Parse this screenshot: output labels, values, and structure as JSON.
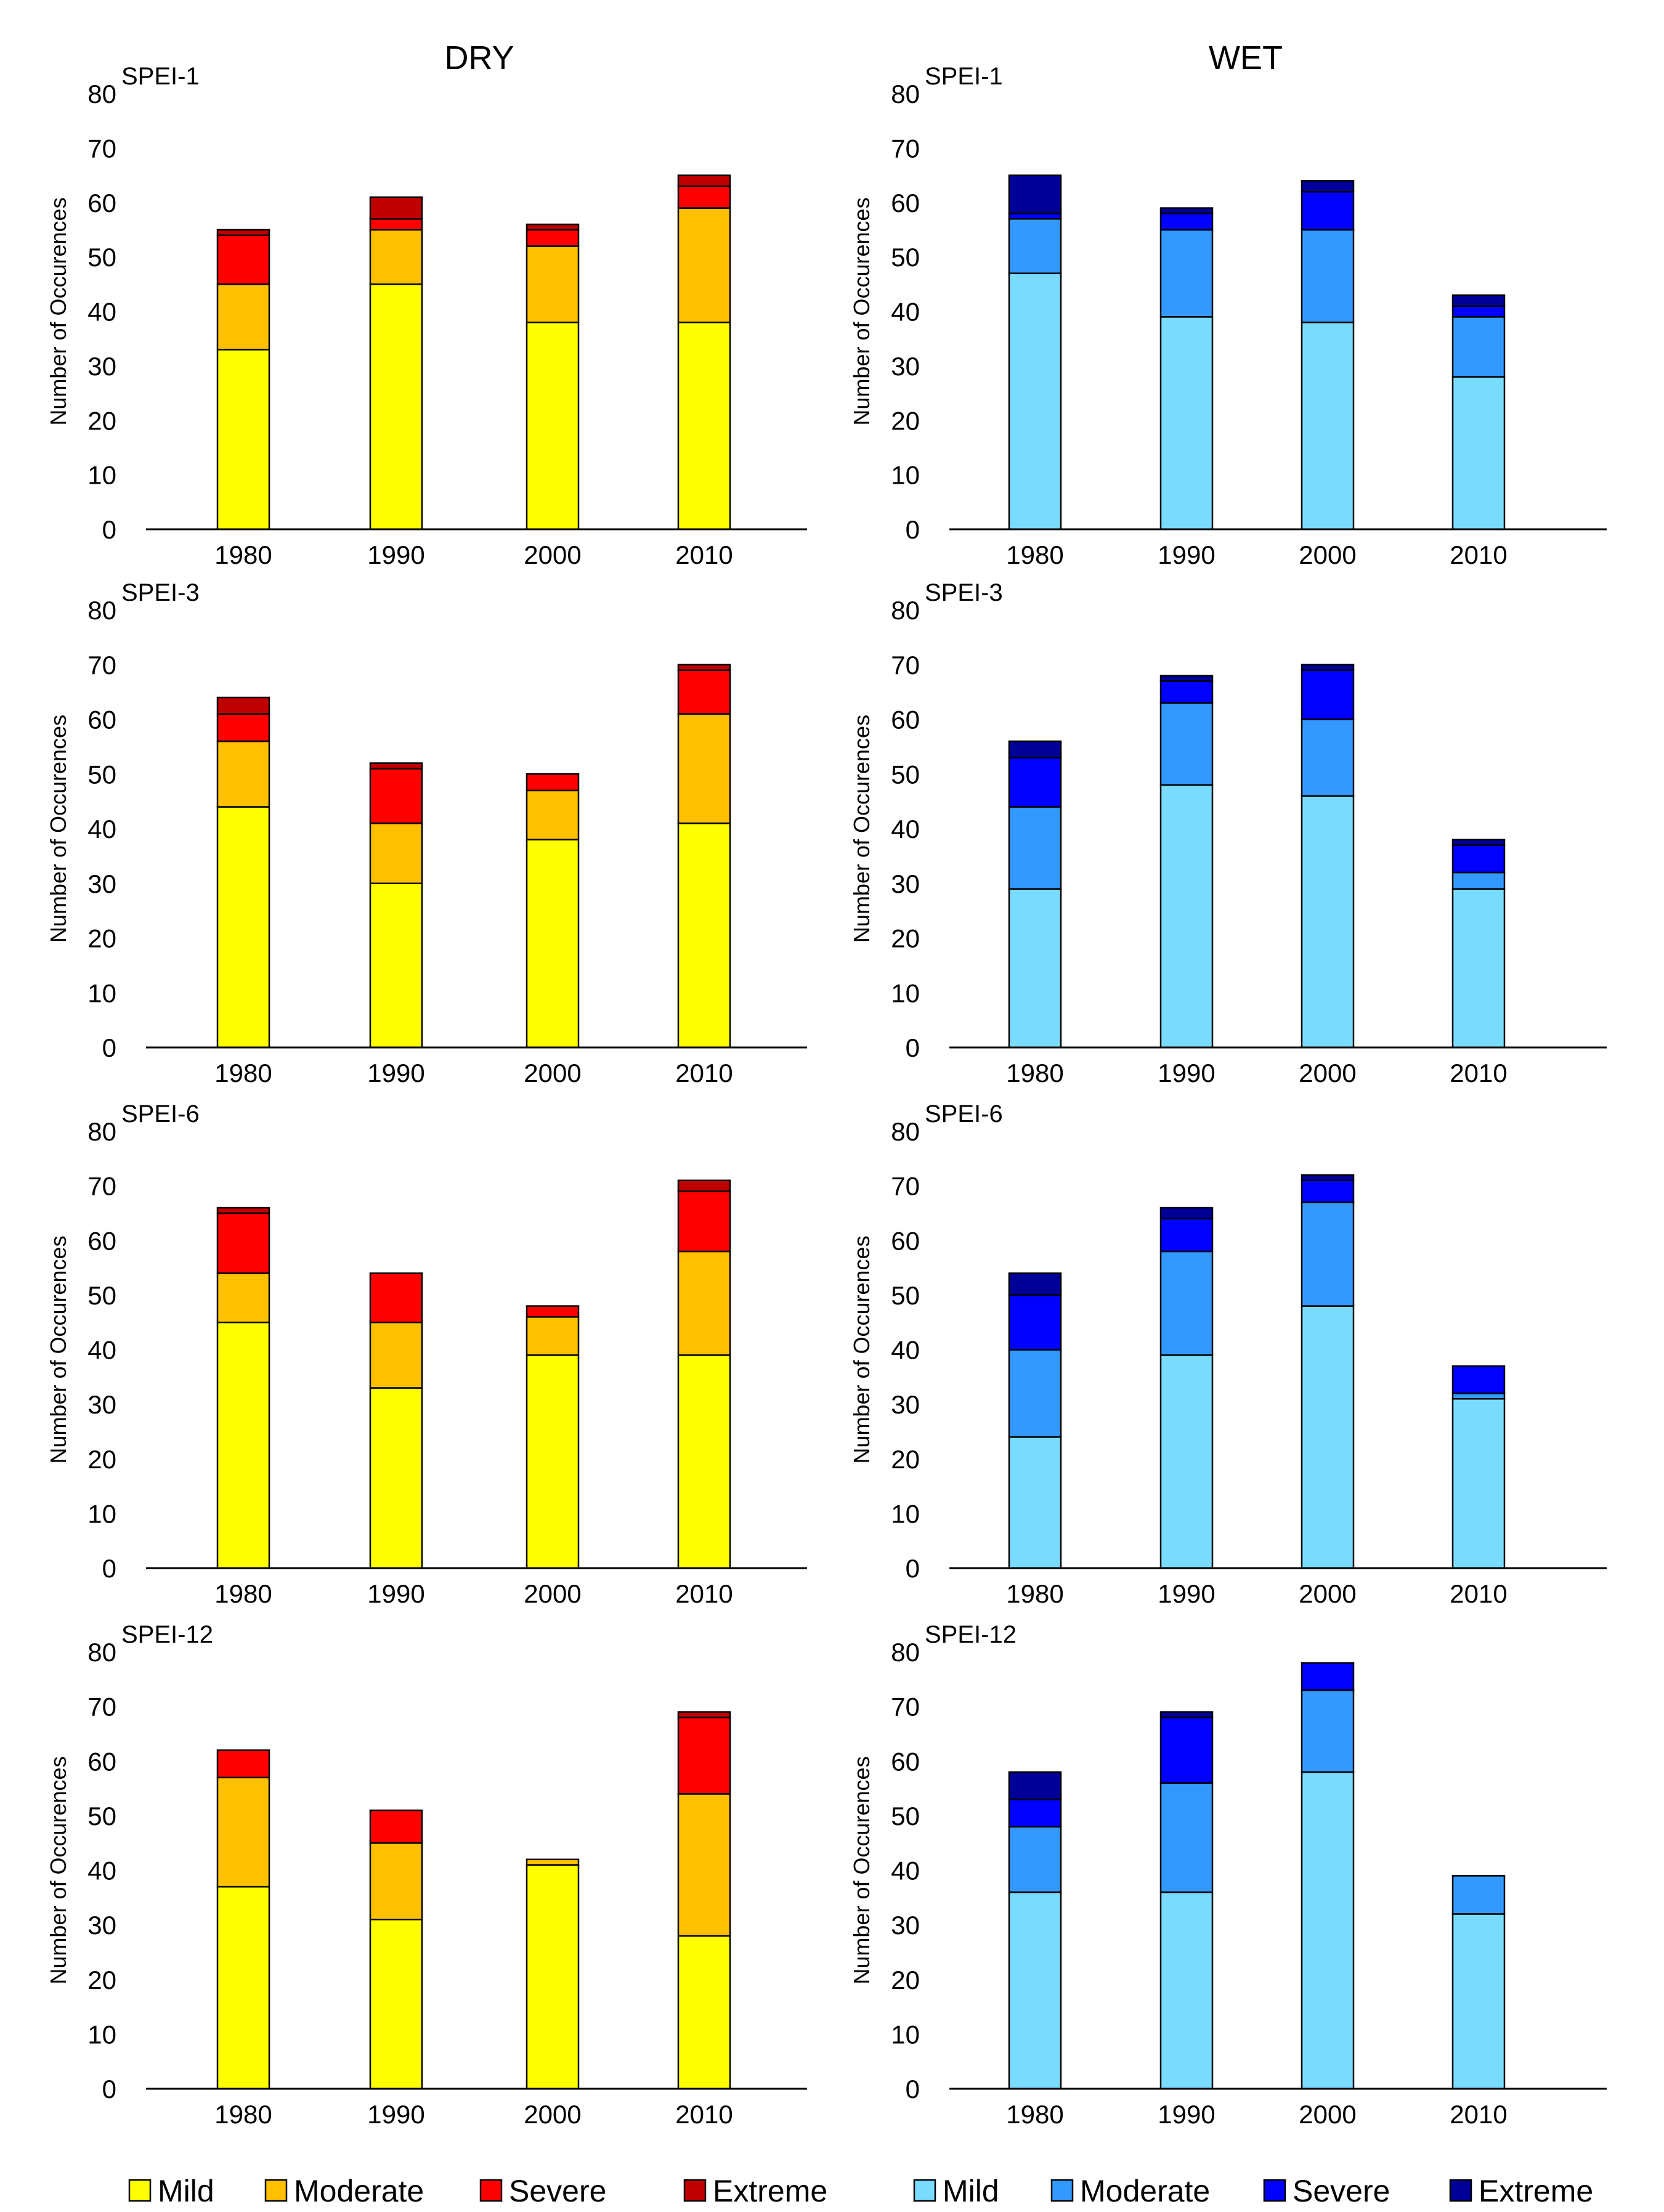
{
  "figure": {
    "col_titles": [
      "DRY",
      "WET"
    ]
  },
  "legends": {
    "dry": [
      {
        "label": "Mild",
        "color": "#FFFF00"
      },
      {
        "label": "Moderate",
        "color": "#FFC000"
      },
      {
        "label": "Severe",
        "color": "#FF0000"
      },
      {
        "label": "Extreme",
        "color": "#C00000"
      }
    ],
    "wet": [
      {
        "label": "Mild",
        "color": "#79DCFF"
      },
      {
        "label": "Moderate",
        "color": "#3399FF"
      },
      {
        "label": "Severe",
        "color": "#0000FF"
      },
      {
        "label": "Extreme",
        "color": "#000099"
      }
    ]
  },
  "chart_data": [
    {
      "type": "bar",
      "stacked": true,
      "group": "dry",
      "title": "SPEI-1",
      "ylabel": "Number of Occurences",
      "ylim": [
        0,
        80
      ],
      "yticks": [
        0,
        10,
        20,
        30,
        40,
        50,
        60,
        70,
        80
      ],
      "categories": [
        "1980",
        "1990",
        "2000",
        "2010"
      ],
      "series": [
        {
          "name": "Mild",
          "values": [
            33,
            45,
            38,
            38
          ]
        },
        {
          "name": "Moderate",
          "values": [
            12,
            10,
            14,
            21
          ]
        },
        {
          "name": "Severe",
          "values": [
            9,
            2,
            3,
            4
          ]
        },
        {
          "name": "Extreme",
          "values": [
            1,
            4,
            1,
            2
          ]
        }
      ]
    },
    {
      "type": "bar",
      "stacked": true,
      "group": "wet",
      "title": "SPEI-1",
      "ylabel": "Number of Occurences",
      "ylim": [
        0,
        80
      ],
      "yticks": [
        0,
        10,
        20,
        30,
        40,
        50,
        60,
        70,
        80
      ],
      "categories": [
        "1980",
        "1990",
        "2000",
        "2010"
      ],
      "series": [
        {
          "name": "Mild",
          "values": [
            47,
            39,
            38,
            28
          ]
        },
        {
          "name": "Moderate",
          "values": [
            10,
            16,
            17,
            11
          ]
        },
        {
          "name": "Severe",
          "values": [
            1,
            3,
            7,
            2
          ]
        },
        {
          "name": "Extreme",
          "values": [
            7,
            1,
            2,
            2
          ]
        }
      ]
    },
    {
      "type": "bar",
      "stacked": true,
      "group": "dry",
      "title": "SPEI-3",
      "ylabel": "Number of Occurences",
      "ylim": [
        0,
        80
      ],
      "yticks": [
        0,
        10,
        20,
        30,
        40,
        50,
        60,
        70,
        80
      ],
      "categories": [
        "1980",
        "1990",
        "2000",
        "2010"
      ],
      "series": [
        {
          "name": "Mild",
          "values": [
            44,
            30,
            38,
            41
          ]
        },
        {
          "name": "Moderate",
          "values": [
            12,
            11,
            9,
            20
          ]
        },
        {
          "name": "Severe",
          "values": [
            5,
            10,
            3,
            8
          ]
        },
        {
          "name": "Extreme",
          "values": [
            3,
            1,
            0,
            1
          ]
        }
      ]
    },
    {
      "type": "bar",
      "stacked": true,
      "group": "wet",
      "title": "SPEI-3",
      "ylabel": "Number of Occurences",
      "ylim": [
        0,
        80
      ],
      "yticks": [
        0,
        10,
        20,
        30,
        40,
        50,
        60,
        70,
        80
      ],
      "categories": [
        "1980",
        "1990",
        "2000",
        "2010"
      ],
      "series": [
        {
          "name": "Mild",
          "values": [
            29,
            48,
            46,
            29
          ]
        },
        {
          "name": "Moderate",
          "values": [
            15,
            15,
            14,
            3
          ]
        },
        {
          "name": "Severe",
          "values": [
            9,
            4,
            9,
            5
          ]
        },
        {
          "name": "Extreme",
          "values": [
            3,
            1,
            1,
            1
          ]
        }
      ]
    },
    {
      "type": "bar",
      "stacked": true,
      "group": "dry",
      "title": "SPEI-6",
      "ylabel": "Number of Occurences",
      "ylim": [
        0,
        80
      ],
      "yticks": [
        0,
        10,
        20,
        30,
        40,
        50,
        60,
        70,
        80
      ],
      "categories": [
        "1980",
        "1990",
        "2000",
        "2010"
      ],
      "series": [
        {
          "name": "Mild",
          "values": [
            45,
            33,
            39,
            39
          ]
        },
        {
          "name": "Moderate",
          "values": [
            9,
            12,
            7,
            19
          ]
        },
        {
          "name": "Severe",
          "values": [
            11,
            9,
            2,
            11
          ]
        },
        {
          "name": "Extreme",
          "values": [
            1,
            0,
            0,
            2
          ]
        }
      ]
    },
    {
      "type": "bar",
      "stacked": true,
      "group": "wet",
      "title": "SPEI-6",
      "ylabel": "Number of Occurences",
      "ylim": [
        0,
        80
      ],
      "yticks": [
        0,
        10,
        20,
        30,
        40,
        50,
        60,
        70,
        80
      ],
      "categories": [
        "1980",
        "1990",
        "2000",
        "2010"
      ],
      "series": [
        {
          "name": "Mild",
          "values": [
            24,
            39,
            48,
            31
          ]
        },
        {
          "name": "Moderate",
          "values": [
            16,
            19,
            19,
            1
          ]
        },
        {
          "name": "Severe",
          "values": [
            10,
            6,
            4,
            5
          ]
        },
        {
          "name": "Extreme",
          "values": [
            4,
            2,
            1,
            0
          ]
        }
      ]
    },
    {
      "type": "bar",
      "stacked": true,
      "group": "dry",
      "title": "SPEI-12",
      "ylabel": "Number of Occurences",
      "ylim": [
        0,
        80
      ],
      "yticks": [
        0,
        10,
        20,
        30,
        40,
        50,
        60,
        70,
        80
      ],
      "categories": [
        "1980",
        "1990",
        "2000",
        "2010"
      ],
      "series": [
        {
          "name": "Mild",
          "values": [
            37,
            31,
            41,
            28
          ]
        },
        {
          "name": "Moderate",
          "values": [
            20,
            14,
            1,
            26
          ]
        },
        {
          "name": "Severe",
          "values": [
            5,
            6,
            0,
            14
          ]
        },
        {
          "name": "Extreme",
          "values": [
            0,
            0,
            0,
            1
          ]
        }
      ]
    },
    {
      "type": "bar",
      "stacked": true,
      "group": "wet",
      "title": "SPEI-12",
      "ylabel": "Number of Occurences",
      "ylim": [
        0,
        80
      ],
      "yticks": [
        0,
        10,
        20,
        30,
        40,
        50,
        60,
        70,
        80
      ],
      "categories": [
        "1980",
        "1990",
        "2000",
        "2010"
      ],
      "series": [
        {
          "name": "Mild",
          "values": [
            36,
            36,
            58,
            32
          ]
        },
        {
          "name": "Moderate",
          "values": [
            12,
            20,
            15,
            7
          ]
        },
        {
          "name": "Severe",
          "values": [
            5,
            12,
            5,
            0
          ]
        },
        {
          "name": "Extreme",
          "values": [
            5,
            1,
            0,
            0
          ]
        }
      ]
    }
  ]
}
